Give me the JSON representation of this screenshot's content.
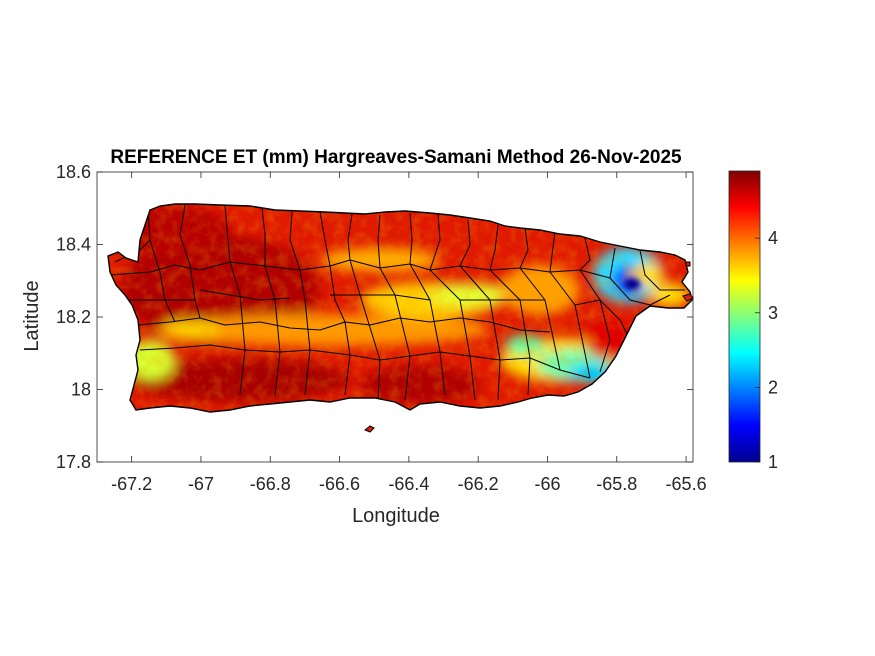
{
  "chart_data": {
    "type": "heatmap",
    "title": "REFERENCE ET (mm) Hargreaves-Samani Method  26-Nov-2025",
    "xlabel": "Longitude",
    "ylabel": "Latitude",
    "xlim": [
      -67.3,
      -65.58
    ],
    "ylim": [
      17.8,
      18.6
    ],
    "xticks": [
      -67.2,
      -67,
      -66.8,
      -66.6,
      -66.4,
      -66.2,
      -66,
      -65.8,
      -65.6
    ],
    "xtick_labels": [
      "-67.2",
      "-67",
      "-66.8",
      "-66.6",
      "-66.4",
      "-66.2",
      "-66",
      "-65.8",
      "-65.6"
    ],
    "yticks": [
      18.6,
      18.4,
      18.2,
      18,
      17.8
    ],
    "ytick_labels": [
      "18.6",
      "18.4",
      "18.2",
      "18",
      "17.8"
    ],
    "colorbar": {
      "colormap": "jet",
      "range": [
        1,
        4.9
      ],
      "ticks": [
        1,
        2,
        3,
        4
      ],
      "tick_labels": [
        "1",
        "2",
        "3",
        "4"
      ]
    },
    "grid": false,
    "approx_field": [
      {
        "region": "western and southwestern interior",
        "value": 4.8
      },
      {
        "region": "north coast",
        "value": 4.5
      },
      {
        "region": "south coastal plain",
        "value": 4.6
      },
      {
        "region": "central mountain ridge",
        "value": 3.6
      },
      {
        "region": "southwest coast near -67.15",
        "value": 3.2
      },
      {
        "region": "Caguas valley / southeast interior",
        "value": 2.8
      },
      {
        "region": "El Yunque, around -65.78, 18.29",
        "value": 1.8
      },
      {
        "region": "far east coast",
        "value": 4.6
      }
    ]
  }
}
